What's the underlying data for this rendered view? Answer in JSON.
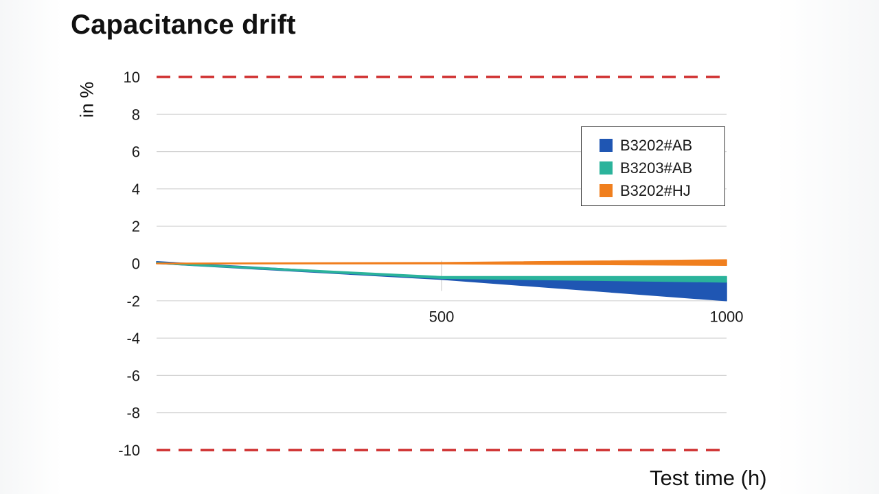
{
  "chart_data": {
    "type": "area",
    "title": "Capacitance drift",
    "ylabel": "in %",
    "xlabel": "Test time (h)",
    "xlim": [
      0,
      1000
    ],
    "ylim": [
      -10,
      10
    ],
    "yticks": [
      10,
      8,
      6,
      4,
      2,
      0,
      -2,
      -4,
      -6,
      -8,
      -10
    ],
    "ytick_labels": [
      "10",
      "8",
      "6",
      "4",
      "2",
      "0",
      "-2",
      "-4",
      "-6",
      "-8",
      "-10"
    ],
    "xticks": [
      500,
      1000
    ],
    "xtick_labels": [
      "500",
      "1000"
    ],
    "limit_lines": [
      10,
      -10
    ],
    "grid": true,
    "legend_position": "top-right",
    "series": [
      {
        "name": "B3202#AB",
        "color": "#1f56b3",
        "x": [
          0,
          500,
          1000
        ],
        "y_upper": [
          0.1,
          -0.75,
          -1.0
        ],
        "y_lower": [
          0.0,
          -0.85,
          -2.0
        ]
      },
      {
        "name": "B3203#AB",
        "color": "#2bb39b",
        "x": [
          0,
          500,
          1000
        ],
        "y_upper": [
          0.05,
          -0.7,
          -0.7
        ],
        "y_lower": [
          0.0,
          -0.8,
          -1.0
        ]
      },
      {
        "name": "B3202#HJ",
        "color": "#f07f1e",
        "x": [
          0,
          500,
          1000
        ],
        "y_upper": [
          0.02,
          0.05,
          0.2
        ],
        "y_lower": [
          -0.02,
          -0.02,
          -0.1
        ]
      }
    ]
  }
}
